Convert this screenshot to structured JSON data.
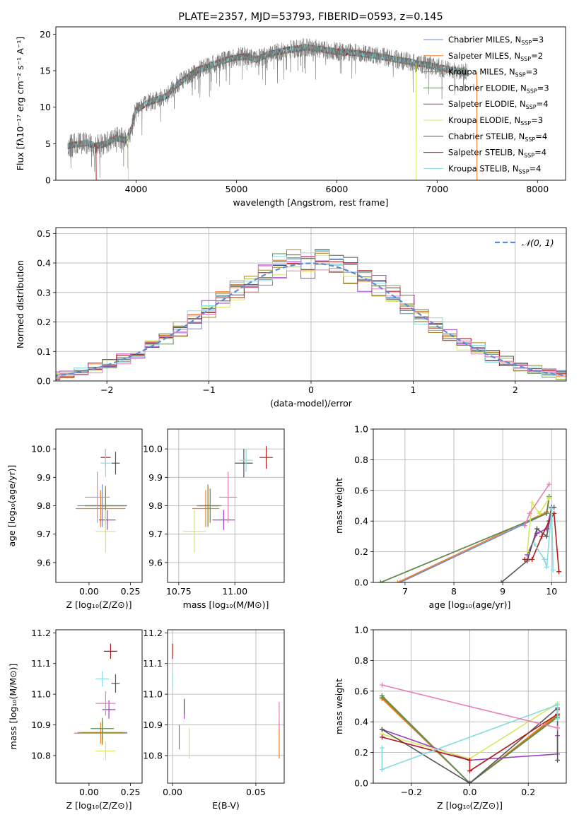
{
  "colors": {
    "Chabrier MILES": "#6689d2",
    "Salpeter MILES": "#f07f2b",
    "Kroupa MILES": "#a5861e",
    "Chabrier ELODIE": "#5e8a56",
    "Salpeter ELODIE": "#9e3ec0",
    "Kroupa ELODIE": "#d6e760",
    "Chabrier STELIB": "#555555",
    "Salpeter STELIB": "#b31b1b",
    "Kroupa STELIB": "#86dbe0",
    "pink": "#e57fb8",
    "gauss": "#5b8cd6",
    "grid": "#b0b0b0"
  },
  "chart_data": [
    {
      "type": "line",
      "title": "PLATE=2357, MJD=53793, FIBERID=0593, z=0.145",
      "xlabel": "wavelength [Angstrom, rest frame]",
      "ylabel": "Flux [fλ10⁻¹⁷ erg cm⁻² s⁻¹ A⁻¹]",
      "xlim": [
        3200,
        8280
      ],
      "ylim": [
        0,
        21
      ],
      "xticks": [
        4000,
        5000,
        6000,
        7000,
        8000
      ],
      "yticks": [
        0,
        5,
        10,
        15,
        20
      ],
      "legend": "right",
      "spectrum_anchors": [
        [
          3320,
          4.7
        ],
        [
          3400,
          4.9
        ],
        [
          3500,
          5.1
        ],
        [
          3600,
          4.7
        ],
        [
          3700,
          5.0
        ],
        [
          3800,
          5.8
        ],
        [
          3900,
          5.5
        ],
        [
          3950,
          7.0
        ],
        [
          4000,
          9.5
        ],
        [
          4100,
          10.5
        ],
        [
          4200,
          11.0
        ],
        [
          4300,
          11.5
        ],
        [
          4400,
          13.0
        ],
        [
          4500,
          14.0
        ],
        [
          4600,
          15.0
        ],
        [
          4700,
          15.5
        ],
        [
          4800,
          16.0
        ],
        [
          4900,
          16.5
        ],
        [
          5000,
          16.8
        ],
        [
          5100,
          17.0
        ],
        [
          5200,
          16.5
        ],
        [
          5300,
          17.2
        ],
        [
          5400,
          17.5
        ],
        [
          5500,
          17.8
        ],
        [
          5600,
          18.0
        ],
        [
          5700,
          18.2
        ],
        [
          5800,
          18.0
        ],
        [
          5900,
          17.8
        ],
        [
          6000,
          17.6
        ],
        [
          6100,
          17.5
        ],
        [
          6200,
          17.4
        ],
        [
          6300,
          17.2
        ],
        [
          6400,
          17.0
        ],
        [
          6500,
          16.8
        ],
        [
          6600,
          16.5
        ],
        [
          6700,
          16.3
        ],
        [
          6800,
          16.0
        ],
        [
          6900,
          15.8
        ],
        [
          7000,
          15.5
        ],
        [
          7100,
          15.2
        ],
        [
          7200,
          15.0
        ],
        [
          7300,
          14.8
        ]
      ],
      "series": [
        {
          "name": "Chabrier MILES, N_SSP=3",
          "n": "3"
        },
        {
          "name": "Salpeter MILES, N_SSP=2",
          "n": "2"
        },
        {
          "name": "Kroupa MILES, N_SSP=3",
          "n": "3"
        },
        {
          "name": "Chabrier ELODIE, N_SSP=3",
          "n": "3"
        },
        {
          "name": "Salpeter ELODIE, N_SSP=4",
          "n": "4"
        },
        {
          "name": "Kroupa ELODIE, N_SSP=3",
          "n": "3"
        },
        {
          "name": "Chabrier STELIB, N_SSP=4",
          "n": "4"
        },
        {
          "name": "Salpeter STELIB, N_SSP=4",
          "n": "4"
        },
        {
          "name": "Kroupa STELIB, N_SSP=4",
          "n": "4"
        }
      ]
    },
    {
      "type": "histogram",
      "xlabel": "(data-model)/error",
      "ylabel": "Normed distribution",
      "xlim": [
        -2.5,
        2.5
      ],
      "ylim": [
        0,
        0.52
      ],
      "xticks": [
        -2,
        -1,
        0,
        1,
        2
      ],
      "yticks": [
        0.0,
        0.1,
        0.2,
        0.3,
        0.4,
        0.5
      ],
      "legend": "top-right",
      "gauss_label": "𝒩(0, 1)",
      "grid": true
    },
    {
      "type": "errorbar",
      "xlabel": "Z [log₁₀(Z/Z⊙)]",
      "ylabel": "age  [log₁₀(age/yr)]",
      "xlim": [
        -0.2,
        0.32
      ],
      "ylim": [
        9.53,
        10.07
      ],
      "xticks": [
        0.0,
        0.25
      ],
      "yticks": [
        9.6,
        9.7,
        9.8,
        9.9,
        10.0
      ],
      "points": [
        {
          "c": "Chabrier MILES",
          "x": 0.08,
          "y": 9.8,
          "xe": 0.3,
          "ye": 0.15
        },
        {
          "c": "Salpeter MILES",
          "x": 0.07,
          "y": 9.79,
          "xe": 0.3,
          "ye": 0.13
        },
        {
          "c": "Kroupa MILES",
          "x": 0.1,
          "y": 9.8,
          "xe": 0.25,
          "ye": 0.14
        },
        {
          "c": "Chabrier ELODIE",
          "x": 0.1,
          "y": 9.8,
          "xe": 0.25,
          "ye": 0.12
        },
        {
          "c": "Salpeter ELODIE",
          "x": 0.11,
          "y": 9.75,
          "xe": 0.1,
          "ye": 0.07
        },
        {
          "c": "Kroupa ELODIE",
          "x": 0.1,
          "y": 9.71,
          "xe": 0.12,
          "ye": 0.15
        },
        {
          "c": "Chabrier STELIB",
          "x": 0.16,
          "y": 9.95,
          "xe": 0.05,
          "ye": 0.08
        },
        {
          "c": "Salpeter STELIB",
          "x": 0.1,
          "y": 9.97,
          "xe": 0.06,
          "ye": 0.06
        },
        {
          "c": "Kroupa STELIB",
          "x": 0.1,
          "y": 9.95,
          "xe": 0.06,
          "ye": 0.1
        },
        {
          "c": "pink",
          "x": 0.05,
          "y": 9.83,
          "xe": 0.15,
          "ye": 0.18
        }
      ]
    },
    {
      "type": "errorbar",
      "xlabel": "mass [log₁₀(M/M⊙)]",
      "xlim": [
        10.7,
        11.22
      ],
      "ylim": [
        9.53,
        10.07
      ],
      "xticks": [
        10.75,
        11.0
      ],
      "yticks": [
        9.6,
        9.7,
        9.8,
        9.9,
        10.0
      ],
      "points": [
        {
          "c": "Chabrier MILES",
          "x": 10.88,
          "y": 9.8,
          "xe": 0.1,
          "ye": 0.15
        },
        {
          "c": "Salpeter MILES",
          "x": 10.87,
          "y": 9.79,
          "xe": 0.12,
          "ye": 0.13
        },
        {
          "c": "Kroupa MILES",
          "x": 10.88,
          "y": 9.8,
          "xe": 0.1,
          "ye": 0.14
        },
        {
          "c": "Chabrier ELODIE",
          "x": 10.89,
          "y": 9.8,
          "xe": 0.1,
          "ye": 0.12
        },
        {
          "c": "Salpeter ELODIE",
          "x": 10.95,
          "y": 9.75,
          "xe": 0.1,
          "ye": 0.07
        },
        {
          "c": "Kroupa ELODIE",
          "x": 10.82,
          "y": 9.71,
          "xe": 0.1,
          "ye": 0.15
        },
        {
          "c": "Chabrier STELIB",
          "x": 11.04,
          "y": 9.95,
          "xe": 0.08,
          "ye": 0.1
        },
        {
          "c": "Salpeter STELIB",
          "x": 11.14,
          "y": 9.97,
          "xe": 0.06,
          "ye": 0.08
        },
        {
          "c": "Kroupa STELIB",
          "x": 11.05,
          "y": 9.96,
          "xe": 0.06,
          "ye": 0.08
        },
        {
          "c": "pink",
          "x": 10.97,
          "y": 9.83,
          "xe": 0.08,
          "ye": 0.18
        }
      ]
    },
    {
      "type": "line",
      "xlabel": "age  [log₁₀(age/yr)]",
      "ylabel": "mass weight",
      "xlim": [
        6.35,
        10.3
      ],
      "ylim": [
        0,
        1
      ],
      "xticks": [
        7,
        8,
        9,
        10
      ],
      "yticks": [
        0.0,
        0.2,
        0.4,
        0.6,
        0.8,
        1.0
      ],
      "grid": true,
      "series": [
        {
          "c": "Chabrier MILES",
          "pts": [
            [
              6.9,
              0.0
            ],
            [
              9.9,
              0.45
            ],
            [
              9.95,
              0.55
            ]
          ]
        },
        {
          "c": "Salpeter MILES",
          "pts": [
            [
              6.85,
              0.0
            ],
            [
              9.9,
              0.46
            ],
            [
              9.95,
              0.56
            ]
          ]
        },
        {
          "c": "Kroupa MILES",
          "pts": [
            [
              6.5,
              0.0
            ],
            [
              9.9,
              0.45
            ],
            [
              9.95,
              0.55
            ]
          ]
        },
        {
          "c": "Chabrier ELODIE",
          "pts": [
            [
              6.5,
              0.0
            ],
            [
              9.9,
              0.45
            ],
            [
              9.95,
              0.56
            ]
          ]
        },
        {
          "c": "Salpeter ELODIE",
          "pts": [
            [
              9.5,
              0.18
            ],
            [
              9.7,
              0.32
            ],
            [
              9.9,
              0.35
            ],
            [
              10.0,
              0.49
            ]
          ]
        },
        {
          "c": "Kroupa ELODIE",
          "pts": [
            [
              9.5,
              0.2
            ],
            [
              9.6,
              0.52
            ],
            [
              9.75,
              0.45
            ],
            [
              9.95,
              0.55
            ]
          ]
        },
        {
          "c": "Chabrier STELIB",
          "pts": [
            [
              8.97,
              0.0
            ],
            [
              9.5,
              0.14
            ],
            [
              9.7,
              0.35
            ],
            [
              9.9,
              0.3
            ],
            [
              10.0,
              0.49
            ],
            [
              10.05,
              0.49
            ]
          ]
        },
        {
          "c": "Salpeter STELIB",
          "pts": [
            [
              9.45,
              0.15
            ],
            [
              9.6,
              0.15
            ],
            [
              9.8,
              0.3
            ],
            [
              9.95,
              0.4
            ],
            [
              10.05,
              0.45
            ],
            [
              10.15,
              0.07
            ]
          ]
        },
        {
          "c": "Kroupa STELIB",
          "pts": [
            [
              9.65,
              0.25
            ],
            [
              9.85,
              0.15
            ],
            [
              9.9,
              0.1
            ],
            [
              10.0,
              0.48
            ],
            [
              10.03,
              0.08
            ]
          ]
        },
        {
          "c": "pink",
          "pts": [
            [
              9.45,
              0.37
            ],
            [
              9.55,
              0.45
            ],
            [
              9.95,
              0.64
            ]
          ]
        }
      ]
    },
    {
      "type": "errorbar",
      "xlabel": "Z [log₁₀(Z/Z⊙)]",
      "ylabel": "mass [log₁₀(M/M⊙)]",
      "xlim": [
        -0.2,
        0.32
      ],
      "ylim": [
        10.71,
        11.21
      ],
      "xticks": [
        0.0,
        0.25
      ],
      "yticks": [
        10.8,
        10.9,
        11.0,
        11.1,
        11.2
      ],
      "points": [
        {
          "c": "Chabrier MILES",
          "x": 0.08,
          "y": 10.875,
          "xe": 0.3,
          "ye": 0.07
        },
        {
          "c": "Salpeter MILES",
          "x": 0.07,
          "y": 10.873,
          "xe": 0.32,
          "ye": 0.07
        },
        {
          "c": "Kroupa MILES",
          "x": 0.08,
          "y": 10.875,
          "xe": 0.25,
          "ye": 0.08
        },
        {
          "c": "Chabrier ELODIE",
          "x": 0.08,
          "y": 10.888,
          "xe": 0.14,
          "ye": 0.07
        },
        {
          "c": "Salpeter ELODIE",
          "x": 0.12,
          "y": 10.95,
          "xe": 0.08,
          "ye": 0.06
        },
        {
          "c": "Kroupa ELODIE",
          "x": 0.1,
          "y": 10.815,
          "xe": 0.12,
          "ye": 0.06
        },
        {
          "c": "Chabrier STELIB",
          "x": 0.16,
          "y": 11.035,
          "xe": 0.05,
          "ye": 0.06
        },
        {
          "c": "Salpeter STELIB",
          "x": 0.13,
          "y": 11.14,
          "xe": 0.08,
          "ye": 0.05
        },
        {
          "c": "Kroupa STELIB",
          "x": 0.08,
          "y": 11.05,
          "xe": 0.08,
          "ye": 0.05
        },
        {
          "c": "pink",
          "x": 0.1,
          "y": 10.97,
          "xe": 0.12,
          "ye": 0.08
        }
      ]
    },
    {
      "type": "errorbar",
      "xlabel": "E(B-V)",
      "xlim": [
        -0.003,
        0.067
      ],
      "ylim": [
        10.71,
        11.21
      ],
      "xticks": [
        0.0,
        0.05
      ],
      "yticks": [
        10.8,
        10.9,
        11.0,
        11.1,
        11.2
      ],
      "grid": true,
      "points": [
        {
          "c": "Salpeter STELIB",
          "x": 0.0,
          "y": 11.14,
          "xe": 0.0,
          "ye": 0.05
        },
        {
          "c": "Kroupa STELIB",
          "x": 0.0,
          "y": 11.05,
          "xe": 0.0,
          "ye": 0.05
        },
        {
          "c": "Chabrier ELODIE",
          "x": 0.004,
          "y": 10.86,
          "xe": 0.0,
          "ye": 0.08
        },
        {
          "c": "Salpeter ELODIE",
          "x": 0.007,
          "y": 10.95,
          "xe": 0.0,
          "ye": 0.06
        },
        {
          "c": "Chabrier STELIB",
          "x": 0.007,
          "y": 10.96,
          "xe": 0.0,
          "ye": 0.05
        },
        {
          "c": "Kroupa ELODIE",
          "x": 0.01,
          "y": 10.84,
          "xe": 0.0,
          "ye": 0.1
        },
        {
          "c": "Salpeter MILES",
          "x": 0.064,
          "y": 10.85,
          "xe": 0.0,
          "ye": 0.12
        },
        {
          "c": "pink",
          "x": 0.064,
          "y": 10.93,
          "xe": 0.0,
          "ye": 0.09
        }
      ]
    },
    {
      "type": "line",
      "xlabel": "Z [log₁₀(Z/Z⊙)]",
      "ylabel": "mass weight",
      "xlim": [
        -0.33,
        0.33
      ],
      "ylim": [
        0,
        1
      ],
      "xticks": [
        -0.2,
        0.0,
        0.2
      ],
      "yticks": [
        0.0,
        0.2,
        0.4,
        0.6,
        0.8,
        1.0
      ],
      "grid": true,
      "series": [
        {
          "c": "Chabrier MILES",
          "pts": [
            [
              -0.3,
              0.56
            ],
            [
              0.0,
              0.0
            ],
            [
              0.3,
              0.44
            ]
          ]
        },
        {
          "c": "Salpeter MILES",
          "pts": [
            [
              -0.3,
              0.55
            ],
            [
              0.0,
              0.0
            ],
            [
              0.3,
              0.45
            ]
          ]
        },
        {
          "c": "Kroupa MILES",
          "pts": [
            [
              -0.3,
              0.56
            ],
            [
              0.0,
              0.0
            ],
            [
              0.3,
              0.44
            ]
          ]
        },
        {
          "c": "Chabrier ELODIE",
          "pts": [
            [
              -0.3,
              0.57
            ],
            [
              0.0,
              0.0
            ],
            [
              0.3,
              0.43
            ]
          ]
        },
        {
          "c": "Salpeter ELODIE",
          "pts": [
            [
              -0.3,
              0.35
            ],
            [
              0.0,
              0.15
            ],
            [
              0.3,
              0.19
            ],
            [
              0.3,
              0.31
            ]
          ]
        },
        {
          "c": "Kroupa ELODIE",
          "pts": [
            [
              -0.3,
              0.32
            ],
            [
              0.0,
              0.16
            ],
            [
              0.3,
              0.52
            ]
          ]
        },
        {
          "c": "Chabrier STELIB",
          "pts": [
            [
              -0.3,
              0.35
            ],
            [
              0.0,
              0.0
            ],
            [
              0.3,
              0.49
            ],
            [
              0.3,
              0.15
            ]
          ]
        },
        {
          "c": "Salpeter STELIB",
          "pts": [
            [
              -0.3,
              0.3
            ],
            [
              0.0,
              0.15
            ],
            [
              0.0,
              0.08
            ],
            [
              0.3,
              0.45
            ],
            [
              0.3,
              0.48
            ]
          ]
        },
        {
          "c": "Kroupa STELIB",
          "pts": [
            [
              -0.3,
              0.23
            ],
            [
              -0.3,
              0.09
            ],
            [
              0.3,
              0.51
            ],
            [
              0.3,
              0.42
            ]
          ]
        },
        {
          "c": "pink",
          "pts": [
            [
              -0.3,
              0.64
            ],
            [
              0.3,
              0.36
            ]
          ]
        }
      ]
    }
  ]
}
